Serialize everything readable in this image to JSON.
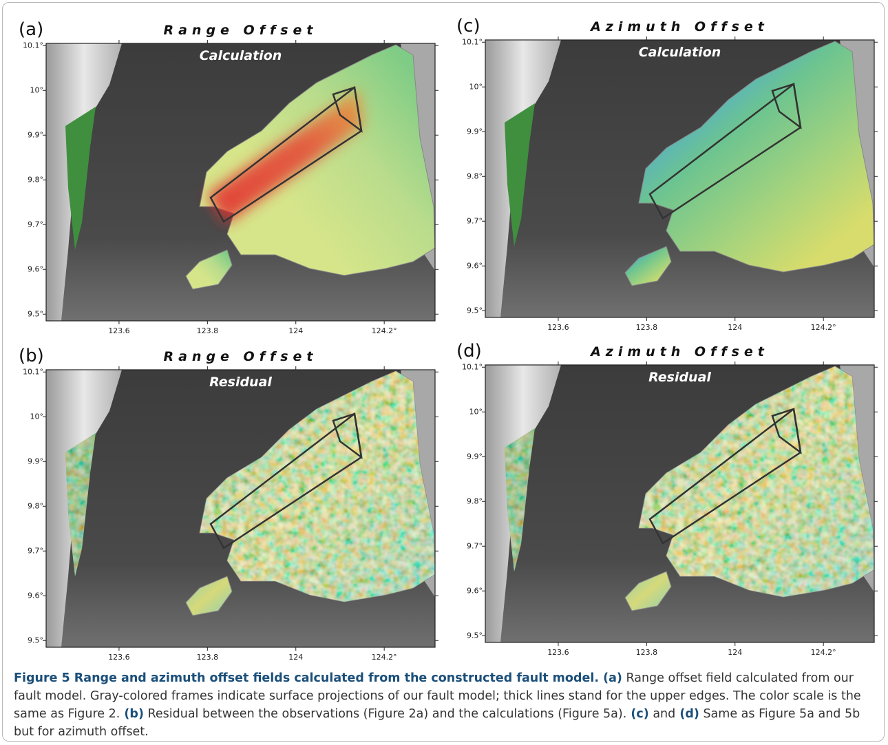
{
  "panels": [
    {
      "label": "(a)",
      "title": "Range Offset",
      "subtitle": "Calculation",
      "xlim": [
        123.435,
        124.315
      ],
      "ylim": [
        9.485,
        10.105
      ],
      "xticks": [
        123.6,
        123.8,
        124,
        {
          "value": 124.2,
          "label": "124.2°"
        }
      ],
      "yticks": [
        {
          "value": 10.1,
          "label": "10.1°"
        },
        {
          "value": 10,
          "label": "10°"
        },
        {
          "value": 9.9,
          "label": "9.9°"
        },
        {
          "value": 9.8,
          "label": "9.8°"
        },
        {
          "value": 9.7,
          "label": "9.7°"
        },
        {
          "value": 9.6,
          "label": "9.6°"
        },
        {
          "value": 9.5,
          "label": "9.5°"
        }
      ]
    },
    {
      "label": "(b)",
      "title": "Range Offset",
      "subtitle": "Residual",
      "xlim": [
        123.435,
        124.315
      ],
      "ylim": [
        9.485,
        10.105
      ],
      "xticks": [
        123.6,
        123.8,
        124,
        {
          "value": 124.2,
          "label": "124.2°"
        }
      ],
      "yticks": [
        {
          "value": 10.1,
          "label": "10.1°"
        },
        {
          "value": 10,
          "label": "10°"
        },
        {
          "value": 9.9,
          "label": "9.9°"
        },
        {
          "value": 9.8,
          "label": "9.8°"
        },
        {
          "value": 9.7,
          "label": "9.7°"
        },
        {
          "value": 9.6,
          "label": "9.6°"
        },
        {
          "value": 9.5,
          "label": "9.5°"
        }
      ]
    },
    {
      "label": "(c)",
      "title": "Azimuth Offset",
      "subtitle": "Calculation",
      "xlim": [
        123.435,
        124.315
      ],
      "ylim": [
        9.485,
        10.105
      ],
      "xticks": [
        123.6,
        123.8,
        124,
        {
          "value": 124.2,
          "label": "124.2°"
        }
      ],
      "yticks": [
        {
          "value": 10.1,
          "label": "10.1°"
        },
        {
          "value": 10,
          "label": "10°"
        },
        {
          "value": 9.9,
          "label": "9.9°"
        },
        {
          "value": 9.8,
          "label": "9.8°"
        },
        {
          "value": 9.7,
          "label": "9.7°"
        },
        {
          "value": 9.6,
          "label": "9.6°"
        },
        {
          "value": 9.5,
          "label": "9.5°"
        }
      ]
    },
    {
      "label": "(d)",
      "title": "Azimuth Offset",
      "subtitle": "Residual",
      "xlim": [
        123.435,
        124.315
      ],
      "ylim": [
        9.485,
        10.105
      ],
      "xticks": [
        123.6,
        123.8,
        124,
        {
          "value": 124.2,
          "label": "124.2°"
        }
      ],
      "yticks": [
        {
          "value": 10.1,
          "label": "10.1°"
        },
        {
          "value": 10,
          "label": "10°"
        },
        {
          "value": 9.9,
          "label": "9.9°"
        },
        {
          "value": 9.8,
          "label": "9.8°"
        },
        {
          "value": 9.7,
          "label": "9.7°"
        },
        {
          "value": 9.6,
          "label": "9.6°"
        },
        {
          "value": 9.5,
          "label": "9.5°"
        }
      ]
    }
  ],
  "caption": {
    "segments": [
      {
        "text": "Figure 5 Range and azimuth offset fields calculated from the constructed fault model.",
        "bold": true
      },
      {
        "text": " (a)",
        "bold": true
      },
      {
        "text": " Range offset field calculated from our fault model. Gray-colored frames indicate surface projections of our fault model; thick lines stand for the upper edges. The color scale is the same as Figure 2.",
        "bold": false
      },
      {
        "text": " (b)",
        "bold": true
      },
      {
        "text": " Residual between the observations (Figure 2a) and the calculations (Figure 5a).",
        "bold": false
      },
      {
        "text": " (c)",
        "bold": true
      },
      {
        "text": " and",
        "bold": false
      },
      {
        "text": " (d)",
        "bold": true
      },
      {
        "text": " Same as Figure 5a and 5b but for azimuth offset.",
        "bold": false
      }
    ]
  }
}
